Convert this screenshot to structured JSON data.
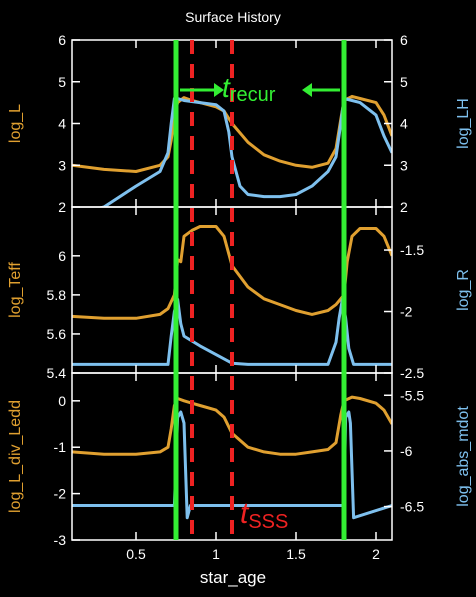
{
  "title": "Surface History",
  "xlabel": "star_age",
  "colors": {
    "background": "#000000",
    "axes": "#ffffff",
    "left_series": "#e0a030",
    "right_series": "#7ec0ee",
    "marker_green": "#33ee33",
    "marker_red": "#ee2222"
  },
  "chart_data": [
    {
      "type": "line",
      "panel": "top",
      "xlim": [
        0.1,
        2.1
      ],
      "x_ticks": [
        0.5,
        1,
        1.5,
        2
      ],
      "ylim_left": [
        2,
        6
      ],
      "ylim_right": [
        2,
        6
      ],
      "left_ticks": [
        "2",
        "3",
        "4",
        "5",
        "6"
      ],
      "right_ticks": [
        "2",
        "3",
        "4",
        "5",
        "6"
      ],
      "ylabel_left": "log_L",
      "ylabel_right": "log_LH",
      "series": [
        {
          "name": "log_L",
          "axis": "left",
          "x": [
            0.1,
            0.3,
            0.5,
            0.65,
            0.7,
            0.72,
            0.74,
            0.76,
            0.8,
            0.85,
            0.9,
            1.0,
            1.05,
            1.1,
            1.2,
            1.3,
            1.4,
            1.5,
            1.6,
            1.7,
            1.75,
            1.78,
            1.8,
            1.85,
            1.9,
            2.0,
            2.05,
            2.1
          ],
          "y": [
            3.0,
            2.9,
            2.85,
            3.0,
            3.2,
            3.6,
            4.2,
            4.5,
            4.62,
            4.55,
            4.5,
            4.4,
            4.3,
            4.0,
            3.55,
            3.25,
            3.1,
            3.0,
            2.95,
            3.05,
            3.4,
            4.1,
            4.55,
            4.65,
            4.6,
            4.5,
            4.2,
            3.7
          ]
        },
        {
          "name": "log_LH",
          "axis": "right",
          "x": [
            0.1,
            0.3,
            0.5,
            0.65,
            0.7,
            0.72,
            0.74,
            0.76,
            0.8,
            0.9,
            1.0,
            1.05,
            1.08,
            1.1,
            1.15,
            1.2,
            1.3,
            1.4,
            1.5,
            1.6,
            1.7,
            1.75,
            1.78,
            1.8,
            1.85,
            1.9,
            2.0,
            2.05,
            2.1
          ],
          "y": [
            1.8,
            2.0,
            2.5,
            2.85,
            3.3,
            4.0,
            4.6,
            4.6,
            4.55,
            4.5,
            4.45,
            4.3,
            3.8,
            3.2,
            2.5,
            2.3,
            2.25,
            2.25,
            2.3,
            2.5,
            2.85,
            3.2,
            4.0,
            4.6,
            4.55,
            4.5,
            4.2,
            3.7,
            3.3
          ]
        }
      ]
    },
    {
      "type": "line",
      "panel": "middle",
      "xlim": [
        0.1,
        2.1
      ],
      "x_ticks": [
        0.5,
        1,
        1.5,
        2
      ],
      "ylim_left": [
        5.4,
        6.25
      ],
      "ylim_right": [
        -2.5,
        -1.15
      ],
      "left_ticks": [
        "5.4",
        "5.6",
        "5.8",
        "6"
      ],
      "right_ticks": [
        "-2.5",
        "-2",
        "-1.5"
      ],
      "ylabel_left": "log_Teff",
      "ylabel_right": "log_R",
      "series": [
        {
          "name": "log_Teff",
          "axis": "left",
          "x": [
            0.1,
            0.3,
            0.5,
            0.65,
            0.7,
            0.74,
            0.76,
            0.78,
            0.8,
            0.85,
            0.9,
            1.0,
            1.05,
            1.1,
            1.2,
            1.3,
            1.4,
            1.5,
            1.6,
            1.7,
            1.75,
            1.8,
            1.82,
            1.85,
            1.9,
            2.0,
            2.05,
            2.1
          ],
          "y": [
            5.69,
            5.68,
            5.68,
            5.7,
            5.73,
            5.8,
            5.98,
            5.97,
            6.1,
            6.13,
            6.15,
            6.15,
            6.1,
            5.95,
            5.84,
            5.78,
            5.75,
            5.72,
            5.7,
            5.72,
            5.75,
            5.8,
            5.97,
            6.1,
            6.14,
            6.14,
            6.1,
            6.0
          ]
        },
        {
          "name": "log_R",
          "axis": "right",
          "x": [
            0.1,
            0.5,
            0.7,
            0.72,
            0.74,
            0.76,
            0.78,
            0.8,
            0.9,
            1.0,
            1.1,
            1.2,
            1.3,
            1.4,
            1.5,
            1.6,
            1.7,
            1.75,
            1.77,
            1.79,
            1.81,
            1.83,
            1.86,
            1.9,
            2.0,
            2.1
          ],
          "y": [
            -2.43,
            -2.43,
            -2.43,
            -2.2,
            -2.0,
            -1.9,
            -2.1,
            -2.2,
            -2.28,
            -2.35,
            -2.42,
            -2.43,
            -2.43,
            -2.43,
            -2.43,
            -2.43,
            -2.43,
            -2.25,
            -2.05,
            -1.9,
            -2.05,
            -2.3,
            -2.43,
            -2.43,
            -2.43,
            -2.43
          ]
        }
      ]
    },
    {
      "type": "line",
      "panel": "bottom",
      "xlim": [
        0.1,
        2.1
      ],
      "x_ticks": [
        0.5,
        1,
        1.5,
        2
      ],
      "ylim_left": [
        -3,
        0.6
      ],
      "ylim_right": [
        -6.8,
        -5.3
      ],
      "left_ticks": [
        "-3",
        "-2",
        "-1",
        "0"
      ],
      "right_ticks": [
        "-6.5",
        "-6",
        "-5.5"
      ],
      "ylabel_left": "log_L_div_Ledd",
      "ylabel_right": "log_abs_mdot",
      "series": [
        {
          "name": "log_L_div_Ledd",
          "axis": "left",
          "x": [
            0.1,
            0.3,
            0.5,
            0.65,
            0.7,
            0.72,
            0.74,
            0.76,
            0.8,
            0.85,
            0.9,
            1.0,
            1.05,
            1.1,
            1.2,
            1.3,
            1.4,
            1.5,
            1.6,
            1.7,
            1.75,
            1.78,
            1.8,
            1.85,
            1.9,
            2.0,
            2.05,
            2.1
          ],
          "y": [
            -1.1,
            -1.15,
            -1.15,
            -1.1,
            -1.0,
            -0.6,
            -0.1,
            0.05,
            0.0,
            -0.05,
            -0.1,
            -0.2,
            -0.35,
            -0.7,
            -1.0,
            -1.1,
            -1.15,
            -1.15,
            -1.1,
            -1.05,
            -0.9,
            -0.3,
            0.0,
            0.08,
            0.05,
            -0.05,
            -0.2,
            -0.5
          ]
        },
        {
          "name": "log_abs_mdot",
          "axis": "right",
          "x": [
            0.1,
            0.5,
            0.7,
            0.74,
            0.76,
            0.78,
            0.8,
            0.82,
            0.84,
            1.0,
            1.5,
            1.76,
            1.8,
            1.81,
            1.83,
            1.84,
            1.86,
            2.1
          ],
          "y": [
            -6.49,
            -6.49,
            -6.49,
            -6.49,
            -5.7,
            -5.65,
            -5.75,
            -6.6,
            -6.49,
            -6.49,
            -6.49,
            -6.49,
            -6.49,
            -5.7,
            -5.65,
            -5.75,
            -6.6,
            -6.49
          ]
        }
      ]
    }
  ],
  "annotations": {
    "green_lines_x": [
      0.75,
      1.8
    ],
    "red_dashed_x": [
      0.85,
      1.1
    ],
    "t_recur": {
      "base": "t",
      "sub": "recur"
    },
    "t_sss": {
      "base": "t",
      "sub": "SSS"
    }
  }
}
